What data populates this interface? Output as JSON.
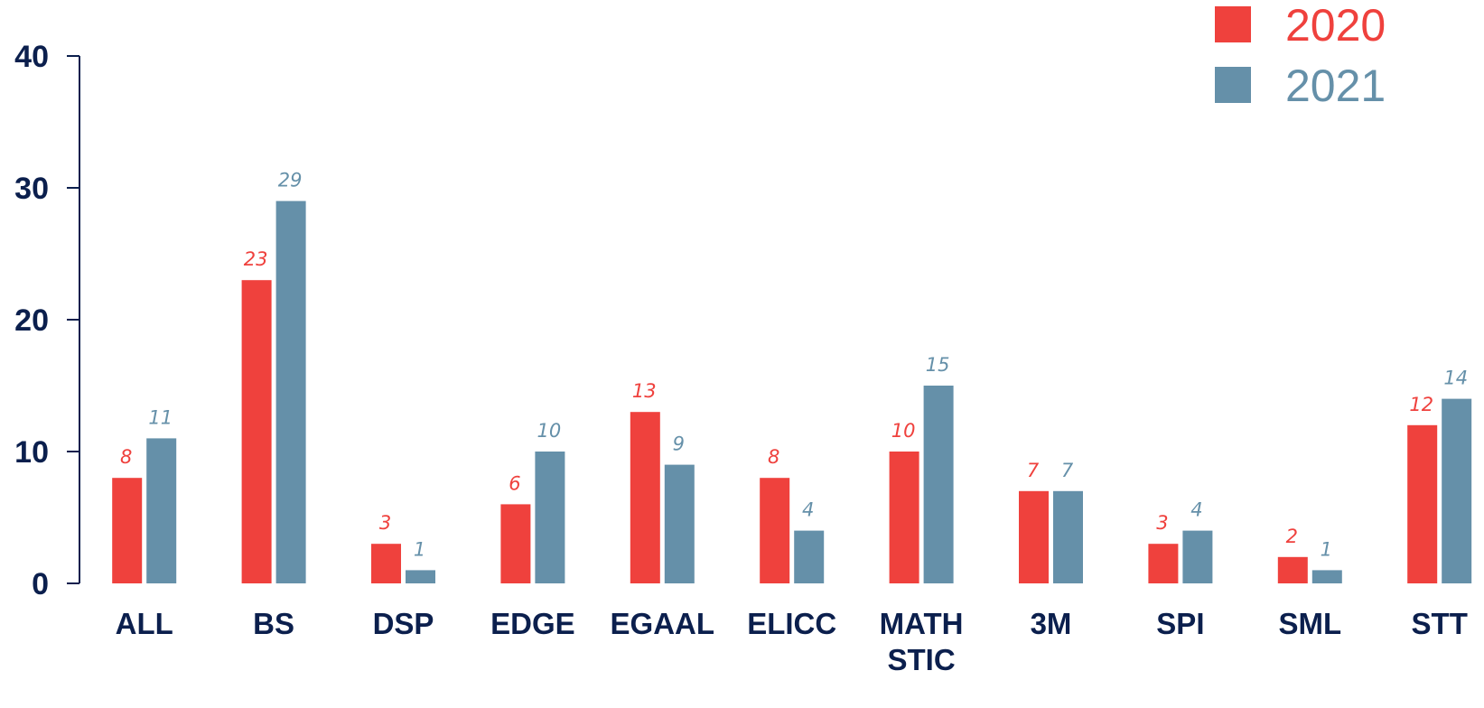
{
  "chart_data": {
    "type": "bar",
    "title": "",
    "xlabel": "",
    "ylabel": "",
    "ylim": [
      0,
      40
    ],
    "yticks": [
      0,
      10,
      20,
      30,
      40
    ],
    "grid": false,
    "legend_position": "top-right",
    "categories": [
      [
        "ALL"
      ],
      [
        "BS"
      ],
      [
        "DSP"
      ],
      [
        "EDGE"
      ],
      [
        "EGAAL"
      ],
      [
        "ELICC"
      ],
      [
        "MATH",
        "STIC"
      ],
      [
        "3M"
      ],
      [
        "SPI"
      ],
      [
        "SML"
      ],
      [
        "STT"
      ]
    ],
    "series": [
      {
        "name": "2020",
        "color": "#ef413d",
        "values": [
          8,
          23,
          3,
          6,
          13,
          8,
          10,
          7,
          3,
          2,
          12
        ]
      },
      {
        "name": "2021",
        "color": "#6590a9",
        "values": [
          11,
          29,
          1,
          10,
          9,
          4,
          15,
          7,
          4,
          1,
          14
        ]
      }
    ],
    "axis_color": "#0b1f4d"
  }
}
